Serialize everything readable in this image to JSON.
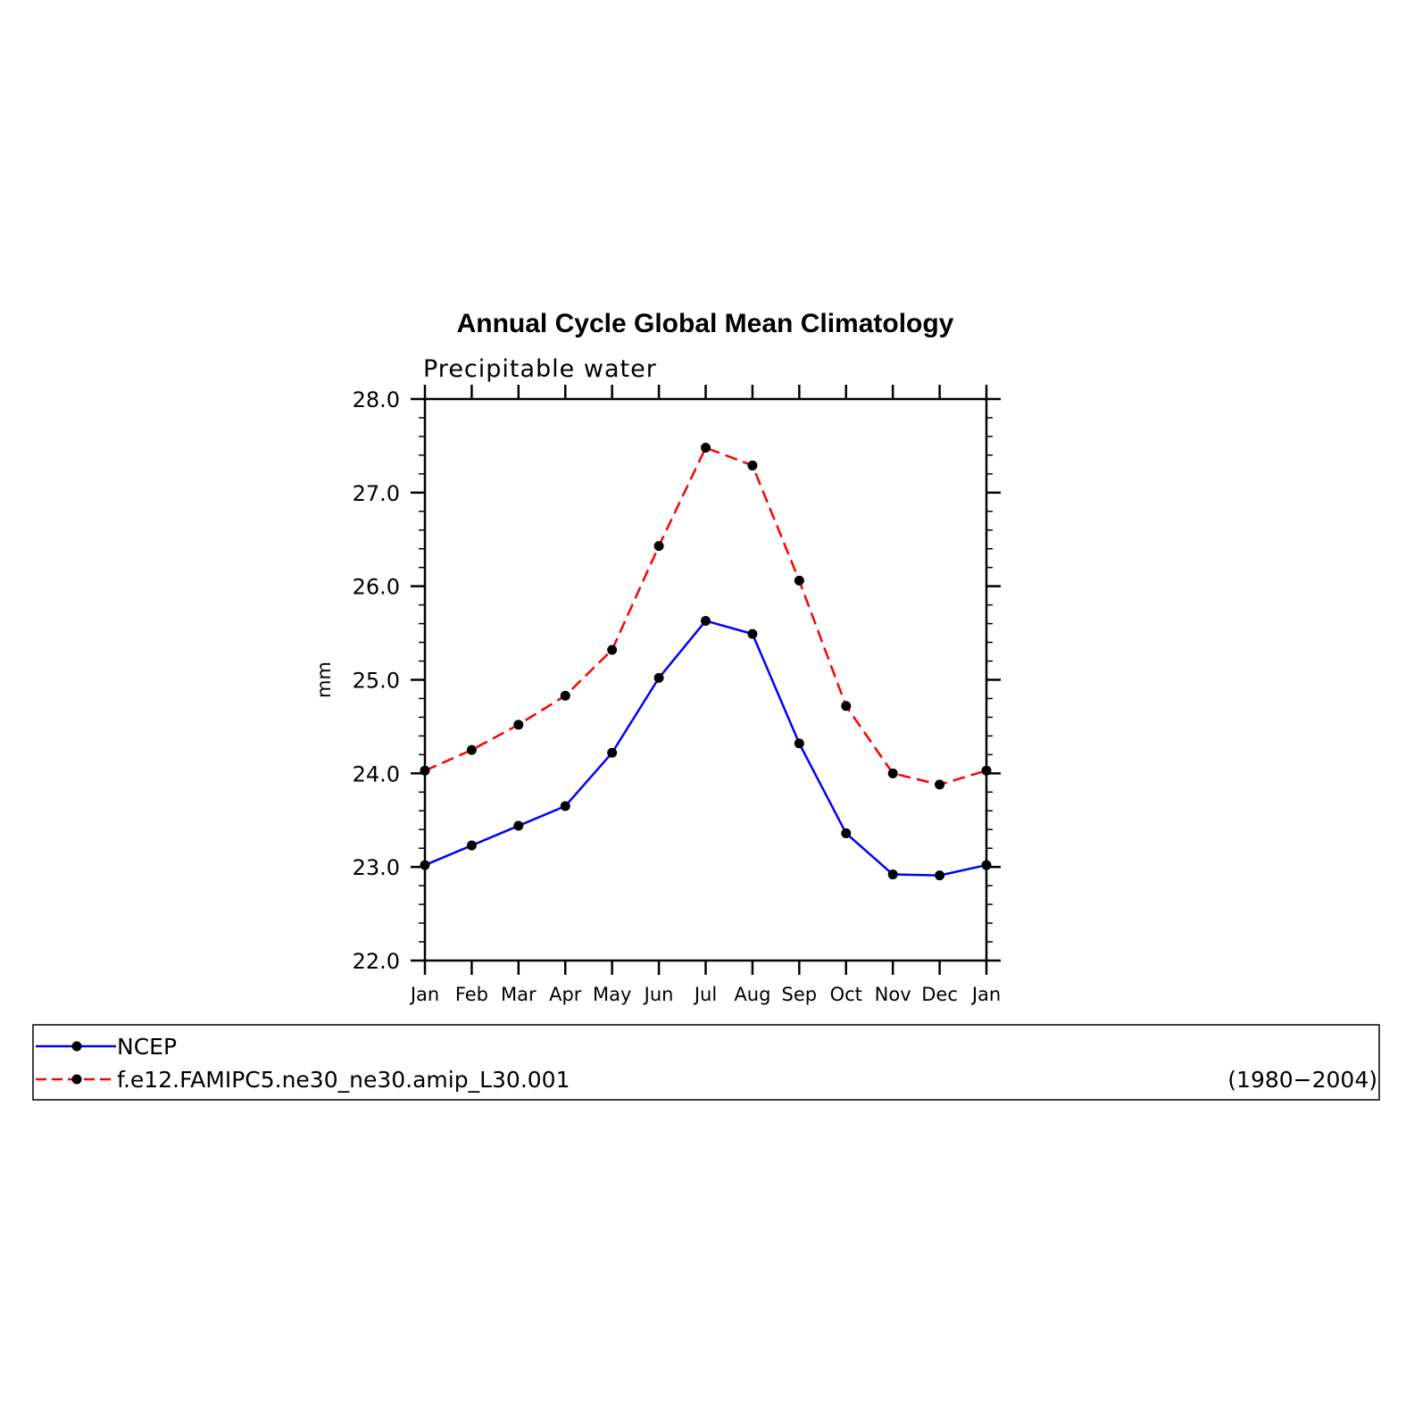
{
  "chart_data": {
    "type": "line",
    "title": "Annual Cycle Global Mean Climatology",
    "subtitle": "Precipitable water",
    "xlabel": "",
    "ylabel": "mm",
    "categories": [
      "Jan",
      "Feb",
      "Mar",
      "Apr",
      "May",
      "Jun",
      "Jul",
      "Aug",
      "Sep",
      "Oct",
      "Nov",
      "Dec",
      "Jan"
    ],
    "ylim": [
      22.0,
      28.0
    ],
    "yticks": [
      "22.0",
      "23.0",
      "24.0",
      "25.0",
      "26.0",
      "27.0",
      "28.0"
    ],
    "series": [
      {
        "name": "NCEP",
        "color": "#0000ff",
        "dash": "solid",
        "values": [
          23.02,
          23.23,
          23.44,
          23.65,
          24.22,
          25.02,
          25.63,
          25.49,
          24.32,
          23.36,
          22.92,
          22.91,
          23.02
        ]
      },
      {
        "name": "f.e12.FAMIPC5.ne30_ne30.amip_L30.001",
        "color": "#ff0000",
        "dash": "dashed",
        "values": [
          24.03,
          24.25,
          24.52,
          24.83,
          25.32,
          26.43,
          27.48,
          27.29,
          26.06,
          24.72,
          24.0,
          23.88,
          24.03
        ]
      }
    ],
    "legend": {
      "entries": [
        "NCEP",
        "f.e12.FAMIPC5.ne30_ne30.amip_L30.001"
      ],
      "note": "(1980−2004)",
      "placement": "bottom"
    },
    "grid": false
  }
}
